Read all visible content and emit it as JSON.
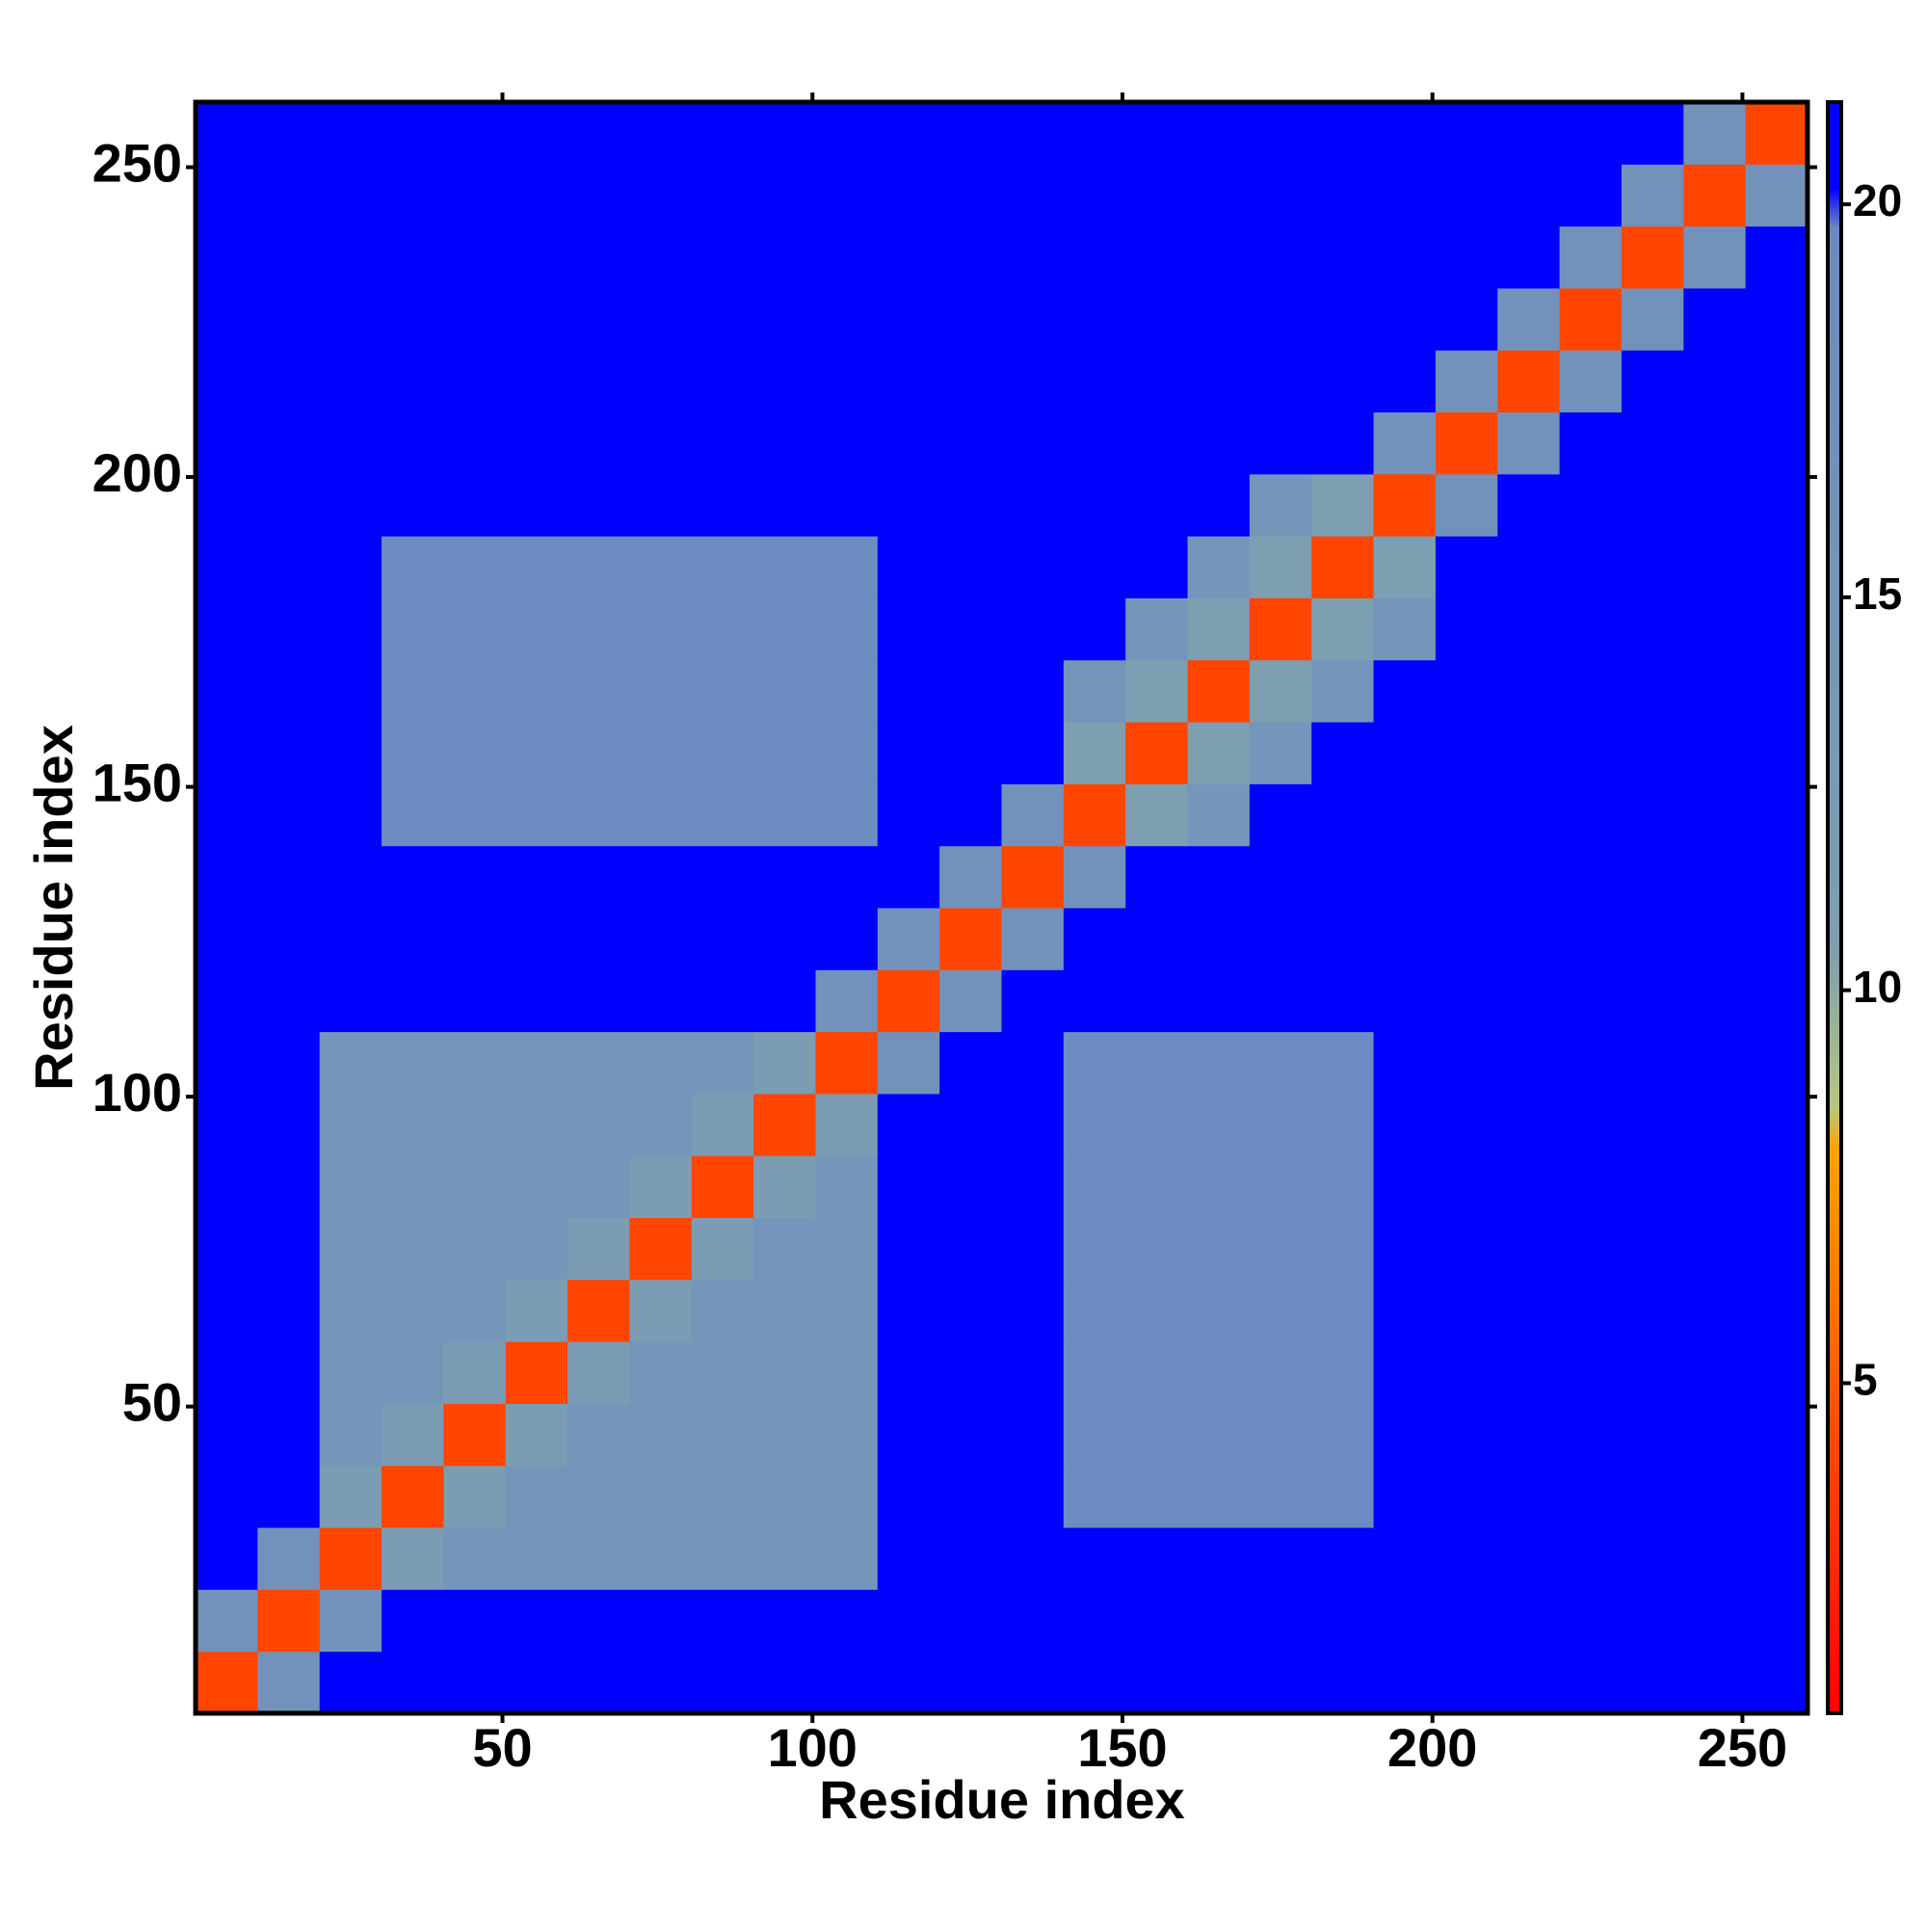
{
  "chart_data": {
    "type": "heatmap",
    "x_label": "Residue index",
    "y_label": "Residue index",
    "xbins": [
      0.5,
      10.5,
      20.5,
      30.5,
      40.5,
      50.5,
      60.5,
      70.5,
      80.5,
      90.5,
      100.5,
      110.5,
      120.5,
      130.5,
      140.5,
      150.5,
      160.5,
      170.5,
      180.5,
      190.5,
      200.5,
      210.5,
      220.5,
      230.5,
      240.5,
      250.5,
      260.5
    ],
    "ybins": [
      0.5,
      10.5,
      20.5,
      30.5,
      40.5,
      50.5,
      60.5,
      70.5,
      80.5,
      90.5,
      100.5,
      110.5,
      120.5,
      130.5,
      140.5,
      150.5,
      160.5,
      170.5,
      180.5,
      190.5,
      200.5,
      210.5,
      220.5,
      230.5,
      240.5,
      250.5,
      260.5
    ],
    "z": [
      [
        4,
        16,
        21,
        21,
        21,
        21,
        21,
        21,
        21,
        21,
        21,
        21,
        21,
        21,
        21,
        21,
        21,
        21,
        21,
        21,
        21,
        21,
        21,
        21,
        21,
        21
      ],
      [
        16,
        4,
        16,
        21,
        21,
        21,
        21,
        21,
        21,
        21,
        21,
        21,
        21,
        21,
        21,
        21,
        21,
        21,
        21,
        21,
        21,
        21,
        21,
        21,
        21,
        21
      ],
      [
        21,
        16,
        4,
        12,
        15,
        15,
        15,
        15,
        15,
        15,
        15,
        21,
        21,
        21,
        21,
        21,
        21,
        21,
        21,
        21,
        21,
        21,
        21,
        21,
        21,
        21
      ],
      [
        21,
        21,
        12,
        4,
        12,
        15,
        15,
        15,
        15,
        15,
        15,
        21,
        21,
        21,
        19,
        19,
        19,
        19,
        19,
        21,
        21,
        21,
        21,
        21,
        21,
        21
      ],
      [
        21,
        21,
        15,
        12,
        4,
        12,
        15,
        15,
        15,
        15,
        15,
        21,
        21,
        21,
        19,
        19,
        19,
        19,
        19,
        21,
        21,
        21,
        21,
        21,
        21,
        21
      ],
      [
        21,
        21,
        15,
        15,
        12,
        4,
        12,
        15,
        15,
        15,
        15,
        21,
        21,
        21,
        19,
        19,
        19,
        19,
        19,
        21,
        21,
        21,
        21,
        21,
        21,
        21
      ],
      [
        21,
        21,
        15,
        15,
        15,
        12,
        4,
        12,
        15,
        15,
        15,
        21,
        21,
        21,
        19,
        19,
        19,
        19,
        19,
        21,
        21,
        21,
        21,
        21,
        21,
        21
      ],
      [
        21,
        21,
        15,
        15,
        15,
        15,
        12,
        4,
        12,
        15,
        15,
        21,
        21,
        21,
        19,
        19,
        19,
        19,
        19,
        21,
        21,
        21,
        21,
        21,
        21,
        21
      ],
      [
        21,
        21,
        15,
        15,
        15,
        15,
        15,
        12,
        4,
        12,
        15,
        21,
        21,
        21,
        19,
        19,
        19,
        19,
        19,
        21,
        21,
        21,
        21,
        21,
        21,
        21
      ],
      [
        21,
        21,
        15,
        15,
        15,
        15,
        15,
        15,
        12,
        4,
        12,
        21,
        21,
        21,
        19,
        19,
        19,
        19,
        19,
        21,
        21,
        21,
        21,
        21,
        21,
        21
      ],
      [
        21,
        21,
        15,
        15,
        15,
        15,
        15,
        15,
        15,
        12,
        4,
        16,
        21,
        21,
        19,
        19,
        19,
        19,
        19,
        21,
        21,
        21,
        21,
        21,
        21,
        21
      ],
      [
        21,
        21,
        21,
        21,
        21,
        21,
        21,
        21,
        21,
        21,
        16,
        4,
        16,
        21,
        21,
        21,
        21,
        21,
        21,
        21,
        21,
        21,
        21,
        21,
        21,
        21
      ],
      [
        21,
        21,
        21,
        21,
        21,
        21,
        21,
        21,
        21,
        21,
        21,
        16,
        4,
        16,
        21,
        21,
        21,
        21,
        21,
        21,
        21,
        21,
        21,
        21,
        21,
        21
      ],
      [
        21,
        21,
        21,
        21,
        21,
        21,
        21,
        21,
        21,
        21,
        21,
        21,
        16,
        4,
        16,
        21,
        21,
        21,
        21,
        21,
        21,
        21,
        21,
        21,
        21,
        21
      ],
      [
        21,
        21,
        21,
        19,
        19,
        19,
        19,
        19,
        19,
        19,
        19,
        21,
        21,
        16,
        4,
        11,
        15,
        21,
        21,
        21,
        21,
        21,
        21,
        21,
        21,
        21
      ],
      [
        21,
        21,
        21,
        19,
        19,
        19,
        19,
        19,
        19,
        19,
        19,
        21,
        21,
        21,
        11,
        4,
        11,
        15,
        21,
        21,
        21,
        21,
        21,
        21,
        21,
        21
      ],
      [
        21,
        21,
        21,
        19,
        19,
        19,
        19,
        19,
        19,
        19,
        19,
        21,
        21,
        21,
        15,
        11,
        4,
        11,
        15,
        21,
        21,
        21,
        21,
        21,
        21,
        21
      ],
      [
        21,
        21,
        21,
        19,
        19,
        19,
        19,
        19,
        19,
        19,
        19,
        21,
        21,
        21,
        21,
        15,
        11,
        4,
        11,
        15,
        21,
        21,
        21,
        21,
        21,
        21
      ],
      [
        21,
        21,
        21,
        19,
        19,
        19,
        19,
        19,
        19,
        19,
        19,
        21,
        21,
        21,
        21,
        21,
        15,
        11,
        4,
        11,
        21,
        21,
        21,
        21,
        21,
        21
      ],
      [
        21,
        21,
        21,
        21,
        21,
        21,
        21,
        21,
        21,
        21,
        21,
        21,
        21,
        21,
        21,
        21,
        21,
        15,
        11,
        4,
        16,
        21,
        21,
        21,
        21,
        21
      ],
      [
        21,
        21,
        21,
        21,
        21,
        21,
        21,
        21,
        21,
        21,
        21,
        21,
        21,
        21,
        21,
        21,
        21,
        21,
        21,
        16,
        4,
        16,
        21,
        21,
        21,
        21
      ],
      [
        21,
        21,
        21,
        21,
        21,
        21,
        21,
        21,
        21,
        21,
        21,
        21,
        21,
        21,
        21,
        21,
        21,
        21,
        21,
        21,
        16,
        4,
        16,
        21,
        21,
        21
      ],
      [
        21,
        21,
        21,
        21,
        21,
        21,
        21,
        21,
        21,
        21,
        21,
        21,
        21,
        21,
        21,
        21,
        21,
        21,
        21,
        21,
        21,
        16,
        4,
        16,
        21,
        21
      ],
      [
        21,
        21,
        21,
        21,
        21,
        21,
        21,
        21,
        21,
        21,
        21,
        21,
        21,
        21,
        21,
        21,
        21,
        21,
        21,
        21,
        21,
        21,
        16,
        4,
        16,
        21
      ],
      [
        21,
        21,
        21,
        21,
        21,
        21,
        21,
        21,
        21,
        21,
        21,
        21,
        21,
        21,
        21,
        21,
        21,
        21,
        21,
        21,
        21,
        21,
        21,
        16,
        4,
        16
      ],
      [
        21,
        21,
        21,
        21,
        21,
        21,
        21,
        21,
        21,
        21,
        21,
        21,
        21,
        21,
        21,
        21,
        21,
        21,
        21,
        21,
        21,
        21,
        21,
        21,
        16,
        4
      ]
    ],
    "xlim": [
      0.5,
      260.5
    ],
    "ylim": [
      0.5,
      260.5
    ],
    "xticks": [
      50,
      100,
      150,
      200,
      250
    ],
    "yticks": [
      50,
      100,
      150,
      200,
      250
    ],
    "clim": [
      0.8,
      21.3
    ],
    "cticks": [
      5,
      10,
      15,
      20
    ],
    "colorscale": [
      [
        0.8,
        "#ff0000"
      ],
      [
        5,
        "#ff5a00"
      ],
      [
        8,
        "#ffa500"
      ],
      [
        8.5,
        "#b7c77c"
      ],
      [
        10.5,
        "#7f9fb0"
      ],
      [
        19.7,
        "#6a8ac4"
      ],
      [
        20.2,
        "#0000ff"
      ],
      [
        21.3,
        "#0000ff"
      ]
    ]
  }
}
